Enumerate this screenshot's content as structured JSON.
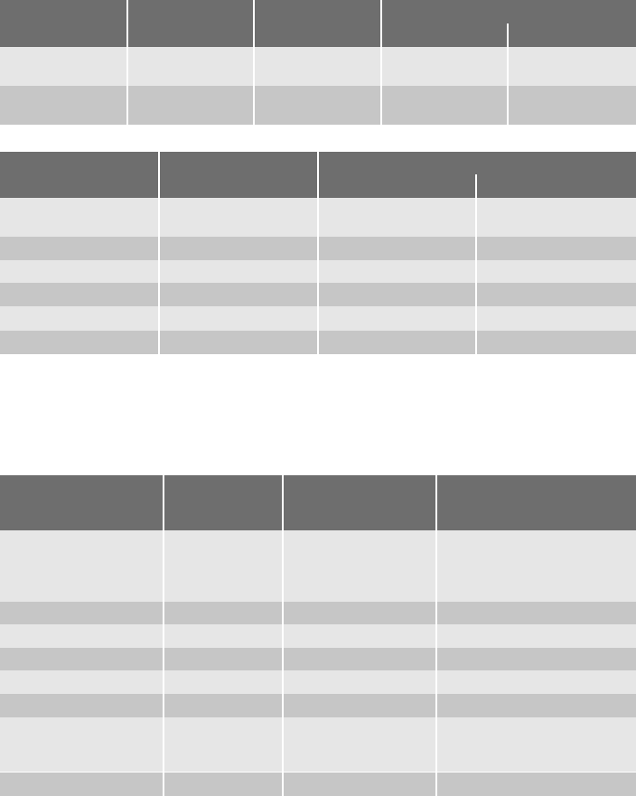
{
  "colors": {
    "header": "#6e6e6e",
    "row_light": "#e6e6e6",
    "row_dark": "#c6c6c6"
  }
}
